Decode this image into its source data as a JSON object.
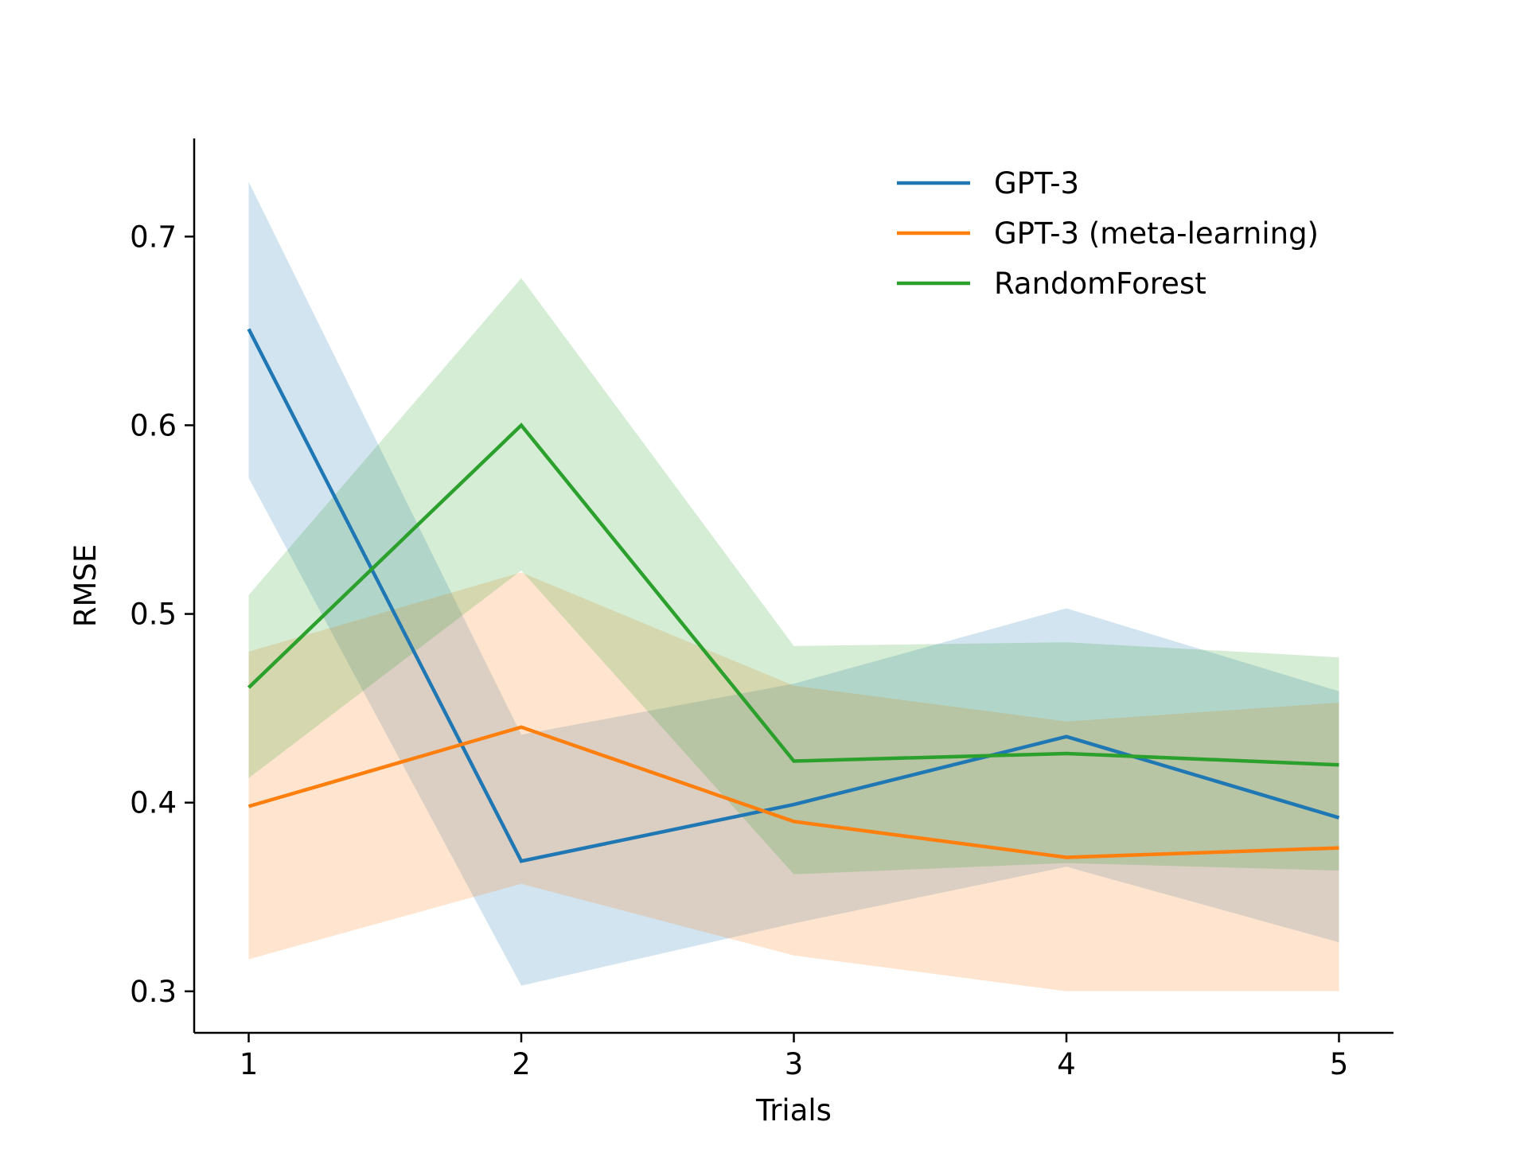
{
  "chart_data": {
    "type": "line",
    "title": "",
    "xlabel": "Trials",
    "ylabel": "RMSE",
    "x": [
      1,
      2,
      3,
      4,
      5
    ],
    "xlim": [
      0.8,
      5.2
    ],
    "ylim": [
      0.278,
      0.752
    ],
    "xticks": [
      1,
      2,
      3,
      4,
      5
    ],
    "xtick_labels": [
      "1",
      "2",
      "3",
      "4",
      "5"
    ],
    "yticks": [
      0.3,
      0.4,
      0.5,
      0.6,
      0.7
    ],
    "ytick_labels": [
      "0.3",
      "0.4",
      "0.5",
      "0.6",
      "0.7"
    ],
    "grid": false,
    "legend_position": "top-right",
    "series": [
      {
        "name": "GPT-3",
        "color": "#1f77b4",
        "fill_color": "#1f77b4",
        "values": [
          0.651,
          0.369,
          0.399,
          0.435,
          0.392
        ],
        "lower": [
          0.572,
          0.303,
          0.336,
          0.366,
          0.326
        ],
        "upper": [
          0.729,
          0.436,
          0.463,
          0.503,
          0.459
        ]
      },
      {
        "name": "GPT-3 (meta-learning)",
        "color": "#ff7f0e",
        "fill_color": "#ff7f0e",
        "values": [
          0.398,
          0.44,
          0.39,
          0.371,
          0.376
        ],
        "lower": [
          0.317,
          0.357,
          0.319,
          0.3,
          0.3
        ],
        "upper": [
          0.48,
          0.522,
          0.462,
          0.443,
          0.453
        ]
      },
      {
        "name": "RandomForest",
        "color": "#2ca02c",
        "fill_color": "#2ca02c",
        "values": [
          0.461,
          0.6,
          0.422,
          0.426,
          0.42
        ],
        "lower": [
          0.413,
          0.523,
          0.362,
          0.368,
          0.364
        ],
        "upper": [
          0.51,
          0.678,
          0.483,
          0.485,
          0.477
        ]
      }
    ]
  }
}
